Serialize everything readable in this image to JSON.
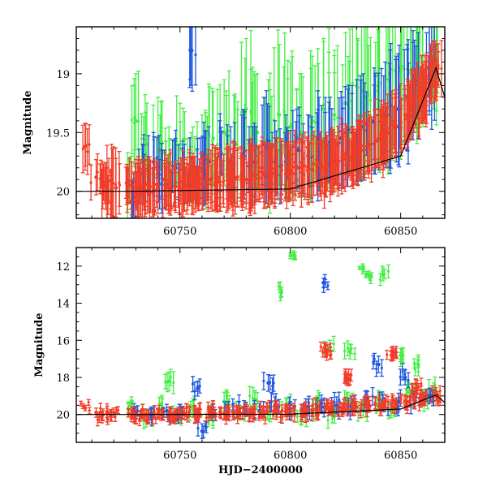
{
  "colors": {
    "green": "#44ee44",
    "blue": "#1f55e0",
    "red": "#f03c28",
    "model_line": "#000000",
    "frame": "#000000"
  },
  "chart_data": [
    {
      "type": "scatter",
      "panel": "top",
      "title": "",
      "xlabel": "",
      "ylabel": "Magnitude",
      "xlim": [
        60703,
        60870
      ],
      "ylim": [
        20.23,
        18.6
      ],
      "y_inverted": true,
      "xticks": [
        60750,
        60800,
        60850
      ],
      "xtick_labels": [
        "60750",
        "60800",
        "60850"
      ],
      "yticks": [
        19,
        19.5,
        20
      ],
      "ytick_labels": [
        "19",
        "19.5",
        "20"
      ],
      "grid": false,
      "legend": "none",
      "series": [
        {
          "color": "green",
          "x": [
            60728,
            60730,
            60735,
            60740,
            60745,
            60750,
            60755,
            60760,
            60765,
            60770,
            60775,
            60780,
            60785,
            60790,
            60795,
            60800,
            60805,
            60810,
            60815,
            60820,
            60825,
            60830,
            60835,
            60840,
            60845,
            60850,
            60855,
            60860,
            60865
          ],
          "y": [
            19.95,
            19.4,
            19.6,
            19.55,
            19.75,
            19.6,
            19.8,
            19.7,
            19.55,
            19.5,
            19.6,
            19.3,
            19.5,
            19.55,
            19.35,
            19.45,
            19.5,
            19.4,
            19.3,
            19.35,
            19.25,
            19.1,
            19.2,
            19.1,
            19.0,
            18.95,
            18.95,
            18.85,
            18.8
          ],
          "err": [
            0.25,
            0.4,
            0.35,
            0.35,
            0.3,
            0.35,
            0.3,
            0.35,
            0.4,
            0.45,
            0.4,
            0.6,
            0.5,
            0.5,
            0.6,
            0.55,
            0.5,
            0.55,
            0.6,
            0.55,
            0.6,
            0.65,
            0.6,
            0.65,
            0.7,
            0.65,
            0.6,
            0.6,
            0.5
          ]
        },
        {
          "color": "blue",
          "x": [
            60729,
            60733,
            60738,
            60743,
            60748,
            60752,
            60755,
            60758,
            60763,
            60768,
            60773,
            60778,
            60783,
            60788,
            60793,
            60798,
            60803,
            60808,
            60813,
            60818,
            60823,
            60828,
            60833,
            60838,
            60843,
            60848,
            60853,
            60858,
            60863
          ],
          "y": [
            20.05,
            19.85,
            19.75,
            19.9,
            19.8,
            19.85,
            18.8,
            19.8,
            19.75,
            19.7,
            19.75,
            19.7,
            19.75,
            19.6,
            19.75,
            19.7,
            19.65,
            19.7,
            19.6,
            19.6,
            19.55,
            19.5,
            19.45,
            19.4,
            19.35,
            19.3,
            19.2,
            19.1,
            18.95
          ],
          "err": [
            0.2,
            0.25,
            0.25,
            0.25,
            0.25,
            0.25,
            0.3,
            0.25,
            0.3,
            0.3,
            0.3,
            0.35,
            0.3,
            0.4,
            0.35,
            0.35,
            0.35,
            0.35,
            0.4,
            0.4,
            0.4,
            0.4,
            0.45,
            0.45,
            0.45,
            0.45,
            0.45,
            0.45,
            0.4
          ]
        },
        {
          "color": "red",
          "x": [
            60707,
            60712,
            60715,
            60717,
            60719,
            60721,
            60728,
            60732,
            60736,
            60740,
            60744,
            60748,
            60752,
            60756,
            60760,
            60764,
            60768,
            60772,
            60776,
            60780,
            60784,
            60788,
            60792,
            60796,
            60800,
            60804,
            60808,
            60812,
            60816,
            60820,
            60824,
            60828,
            60832,
            60836,
            60840,
            60844,
            60848,
            60852,
            60856,
            60860,
            60864,
            60866
          ],
          "y": [
            19.62,
            19.88,
            19.95,
            20.05,
            19.9,
            19.97,
            19.95,
            19.98,
            19.96,
            19.97,
            19.94,
            19.96,
            19.95,
            19.93,
            19.94,
            19.9,
            19.92,
            19.9,
            19.88,
            19.9,
            19.86,
            19.84,
            19.85,
            19.82,
            19.83,
            19.8,
            19.82,
            19.78,
            19.8,
            19.75,
            19.72,
            19.7,
            19.65,
            19.6,
            19.55,
            19.5,
            19.45,
            19.35,
            19.25,
            19.15,
            19.05,
            18.95
          ],
          "err": [
            0.2,
            0.15,
            0.2,
            0.25,
            0.3,
            0.25,
            0.2,
            0.22,
            0.22,
            0.22,
            0.22,
            0.22,
            0.22,
            0.22,
            0.22,
            0.25,
            0.25,
            0.25,
            0.25,
            0.25,
            0.25,
            0.25,
            0.25,
            0.25,
            0.25,
            0.25,
            0.25,
            0.25,
            0.25,
            0.25,
            0.25,
            0.25,
            0.25,
            0.25,
            0.25,
            0.25,
            0.25,
            0.25,
            0.25,
            0.25,
            0.2,
            0.2
          ]
        }
      ],
      "model_line": {
        "x": [
          60703,
          60728,
          60800,
          60850,
          60866,
          60870
        ],
        "y": [
          20.0,
          20.0,
          19.98,
          19.7,
          18.95,
          19.2
        ]
      }
    },
    {
      "type": "scatter",
      "panel": "bottom",
      "title": "",
      "xlabel": "HJD−2400000",
      "ylabel": "Magnitude",
      "xlim": [
        60703,
        60870
      ],
      "ylim": [
        21.5,
        11.0
      ],
      "y_inverted": true,
      "xticks": [
        60750,
        60800,
        60850
      ],
      "xtick_labels": [
        "60750",
        "60800",
        "60850"
      ],
      "yticks": [
        12,
        14,
        16,
        18,
        20
      ],
      "ytick_labels": [
        "12",
        "14",
        "16",
        "18",
        "20"
      ],
      "grid": false,
      "legend": "none",
      "series": [
        {
          "color": "green",
          "x": [
            60728,
            60735,
            60742,
            60749,
            60756,
            60763,
            60770,
            60777,
            60784,
            60791,
            60798,
            60805,
            60812,
            60819,
            60826,
            60833,
            60840,
            60847,
            60854,
            60860,
            60865,
            60745,
            60796,
            60800,
            60818,
            60827,
            60833,
            60836,
            60842,
            60858,
            60850
          ],
          "y": [
            19.4,
            20.1,
            19.6,
            20.0,
            19.7,
            20.1,
            19.3,
            19.9,
            19.2,
            19.8,
            19.6,
            19.9,
            19.5,
            20.0,
            19.3,
            19.7,
            19.2,
            19.6,
            18.8,
            19.1,
            18.7,
            18.2,
            13.4,
            11.45,
            16.4,
            16.6,
            12.1,
            12.6,
            12.45,
            17.3,
            16.8
          ],
          "err": [
            0.35,
            0.4,
            0.45,
            0.4,
            0.45,
            0.4,
            0.5,
            0.4,
            0.5,
            0.45,
            0.5,
            0.45,
            0.5,
            0.45,
            0.5,
            0.45,
            0.5,
            0.45,
            0.5,
            0.45,
            0.4,
            0.5,
            0.25,
            0.15,
            0.4,
            0.4,
            0.1,
            0.15,
            0.35,
            0.4,
            0.35
          ]
        },
        {
          "color": "blue",
          "x": [
            60730,
            60737,
            60744,
            60751,
            60758,
            60765,
            60772,
            60779,
            60786,
            60793,
            60800,
            60807,
            60814,
            60821,
            60828,
            60835,
            60842,
            60849,
            60856,
            60863,
            60815,
            60760,
            60790,
            60840,
            60852
          ],
          "y": [
            19.9,
            20.0,
            19.8,
            19.9,
            18.6,
            19.8,
            19.7,
            19.6,
            19.8,
            19.5,
            19.7,
            19.6,
            19.4,
            19.5,
            19.6,
            19.2,
            19.4,
            19.3,
            19.2,
            19.0,
            12.9,
            20.9,
            18.3,
            17.3,
            18.0
          ],
          "err": [
            0.3,
            0.3,
            0.35,
            0.3,
            0.4,
            0.35,
            0.4,
            0.35,
            0.4,
            0.45,
            0.4,
            0.45,
            0.45,
            0.45,
            0.45,
            0.45,
            0.45,
            0.45,
            0.45,
            0.4,
            0.25,
            0.4,
            0.45,
            0.45,
            0.4
          ]
        },
        {
          "color": "red",
          "x": [
            60707,
            60712,
            60715,
            60717,
            60720,
            60728,
            60734,
            60740,
            60746,
            60752,
            60758,
            60764,
            60770,
            60776,
            60782,
            60788,
            60794,
            60800,
            60806,
            60812,
            60818,
            60824,
            60830,
            60836,
            60842,
            60848,
            60854,
            60860,
            60866,
            60816,
            60846,
            60827,
            60857
          ],
          "y": [
            19.65,
            19.9,
            20.0,
            19.85,
            19.9,
            20.0,
            20.0,
            19.95,
            20.0,
            19.95,
            19.95,
            19.9,
            19.95,
            19.9,
            19.9,
            19.85,
            19.85,
            19.8,
            19.8,
            19.75,
            19.7,
            19.7,
            19.6,
            19.55,
            19.5,
            19.4,
            19.3,
            19.2,
            19.0,
            16.6,
            16.8,
            18.1,
            18.6
          ],
          "err": [
            0.15,
            0.25,
            0.3,
            0.3,
            0.25,
            0.25,
            0.3,
            0.3,
            0.3,
            0.3,
            0.3,
            0.3,
            0.3,
            0.3,
            0.3,
            0.3,
            0.3,
            0.3,
            0.3,
            0.3,
            0.3,
            0.3,
            0.3,
            0.3,
            0.3,
            0.3,
            0.3,
            0.3,
            0.25,
            0.3,
            0.25,
            0.3,
            0.3
          ]
        }
      ],
      "model_line": {
        "x": [
          60703,
          60728,
          60800,
          60850,
          60866,
          60870
        ],
        "y": [
          20.0,
          20.0,
          19.98,
          19.7,
          18.95,
          19.35
        ]
      }
    }
  ]
}
